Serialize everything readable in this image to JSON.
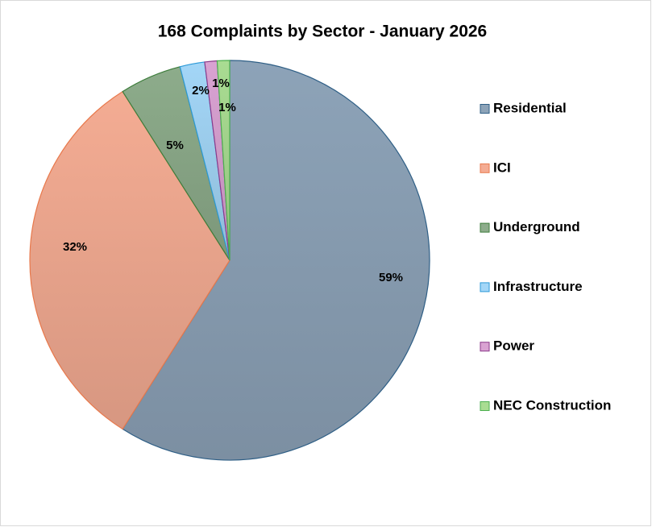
{
  "chart_data": {
    "type": "pie",
    "title": "168 Complaints by Sector - January 2026",
    "categories": [
      "Residential",
      "ICI",
      "Underground",
      "Infrastructure",
      "Power",
      "NEC Construction"
    ],
    "values": [
      59,
      32,
      5,
      2,
      1,
      1
    ],
    "value_labels": [
      "59%",
      "32%",
      "5%",
      "2%",
      "1%",
      "1%"
    ],
    "colors": [
      "#8da3b8",
      "#f4ac93",
      "#8dac8b",
      "#a3d6f7",
      "#d9a2d2",
      "#a9dc92"
    ],
    "legend": "right"
  }
}
